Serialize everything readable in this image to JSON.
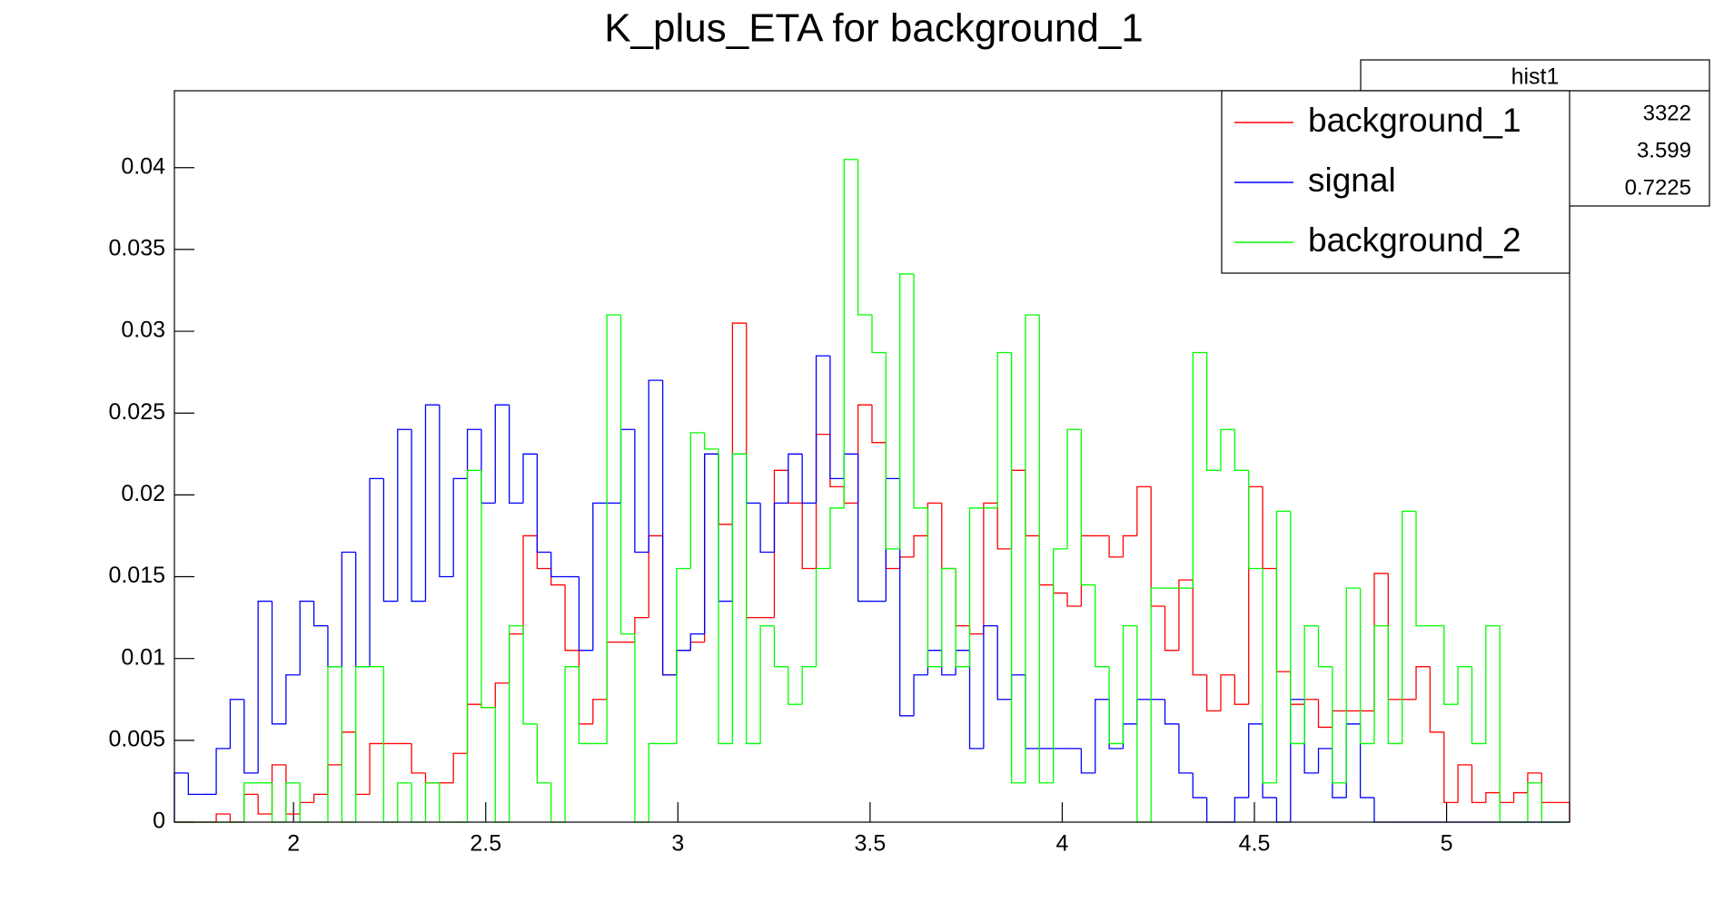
{
  "chart_data": {
    "type": "histogram",
    "title": "K_plus_ETA for background_1",
    "bins": [
      1.69,
      1.7263,
      1.7626,
      1.7989,
      1.8352,
      1.8715,
      1.9078,
      1.9441,
      1.9804,
      2.0167,
      2.053,
      2.0893,
      2.1256,
      2.1619,
      2.1982,
      2.2345,
      2.2708,
      2.3071,
      2.3434,
      2.3797,
      2.416,
      2.4523,
      2.4886,
      2.5249,
      2.5612,
      2.5975,
      2.6338,
      2.6701,
      2.7064,
      2.7427,
      2.779,
      2.8153,
      2.8516,
      2.8879,
      2.9242,
      2.9605,
      2.9968,
      3.0331,
      3.0694,
      3.1057,
      3.142,
      3.1783,
      3.2146,
      3.2509,
      3.2872,
      3.3235,
      3.3598,
      3.3961,
      3.4324,
      3.4687,
      3.505,
      3.5413,
      3.5776,
      3.6139,
      3.6502,
      3.6865,
      3.7228,
      3.7591,
      3.7954,
      3.8317,
      3.868,
      3.9043,
      3.9406,
      3.9769,
      4.0132,
      4.0495,
      4.0858,
      4.1221,
      4.1584,
      4.1947,
      4.231,
      4.2673,
      4.3036,
      4.3399,
      4.3762,
      4.4125,
      4.4488,
      4.4851,
      4.5214,
      4.5577,
      4.594,
      4.6303,
      4.6666,
      4.7029,
      4.7392,
      4.7755,
      4.8118,
      4.8481,
      4.8844,
      4.9207,
      4.957,
      4.9933,
      5.0296,
      5.0659,
      5.1022,
      5.1385,
      5.1748,
      5.2111,
      5.2474,
      5.2837,
      5.32
    ],
    "series": [
      {
        "name": "background_1",
        "color": "#ff0000",
        "values": [
          0,
          0,
          0,
          0.0005,
          0,
          0.0017,
          0.0005,
          0.0035,
          0.0005,
          0.0012,
          0.0017,
          0.0035,
          0.0055,
          0.0017,
          0.0048,
          0.0048,
          0.0048,
          0.003,
          0.0024,
          0.0024,
          0.0042,
          0.0072,
          0.007,
          0.0085,
          0.0115,
          0.0175,
          0.0155,
          0.0145,
          0.0105,
          0.006,
          0.0075,
          0.011,
          0.011,
          0.0125,
          0.0175,
          0.009,
          0.0105,
          0.011,
          0.0225,
          0.0182,
          0.0305,
          0.0125,
          0.0125,
          0.0215,
          0.0195,
          0.0155,
          0.0237,
          0.0205,
          0.0195,
          0.0255,
          0.0232,
          0.0155,
          0.0162,
          0.0175,
          0.0195,
          0.0155,
          0.012,
          0.0115,
          0.0195,
          0.0167,
          0.0215,
          0.0175,
          0.0145,
          0.014,
          0.0132,
          0.0175,
          0.0175,
          0.0162,
          0.0175,
          0.0205,
          0.0132,
          0.0105,
          0.0148,
          0.009,
          0.0068,
          0.009,
          0.0072,
          0.0205,
          0.0155,
          0.0092,
          0.0072,
          0.0075,
          0.0058,
          0.0068,
          0.0068,
          0.0068,
          0.0152,
          0.0075,
          0.0075,
          0.0095,
          0.0055,
          0.0012,
          0.0035,
          0.0012,
          0.0018,
          0.0012,
          0.0018,
          0.003,
          0.0012,
          0.0012
        ]
      },
      {
        "name": "signal",
        "color": "#0000ff",
        "values": [
          0.003,
          0.0017,
          0.0017,
          0.0045,
          0.0075,
          0.003,
          0.0135,
          0.006,
          0.009,
          0.0135,
          0.012,
          0.0095,
          0.0165,
          0.0095,
          0.021,
          0.0135,
          0.024,
          0.0135,
          0.0255,
          0.015,
          0.021,
          0.024,
          0.0195,
          0.0255,
          0.0195,
          0.0225,
          0.0165,
          0.015,
          0.015,
          0.0105,
          0.0195,
          0.0195,
          0.024,
          0.0165,
          0.027,
          0.009,
          0.0105,
          0.0115,
          0.0225,
          0.0135,
          0.0225,
          0.0195,
          0.0165,
          0.0195,
          0.0225,
          0.0195,
          0.0285,
          0.021,
          0.0225,
          0.0135,
          0.0135,
          0.021,
          0.0065,
          0.009,
          0.0105,
          0.009,
          0.0105,
          0.0045,
          0.012,
          0.0075,
          0.009,
          0.0045,
          0.0045,
          0.0045,
          0.0045,
          0.003,
          0.0075,
          0.0045,
          0.006,
          0.0075,
          0.0075,
          0.006,
          0.003,
          0.0015,
          0,
          0,
          0.0015,
          0.006,
          0.0015,
          0,
          0.0075,
          0.003,
          0.0045,
          0.0015,
          0.006,
          0.0015,
          0,
          0,
          0,
          0,
          0,
          0,
          0,
          0,
          0,
          0,
          0,
          0,
          0,
          0
        ]
      },
      {
        "name": "background_2",
        "color": "#00ff00",
        "values": [
          0,
          0,
          0,
          0,
          0,
          0.0024,
          0.0024,
          0,
          0.0024,
          0,
          0,
          0.0095,
          0,
          0.0095,
          0.0095,
          0,
          0.0024,
          0,
          0.0024,
          0,
          0,
          0.0215,
          0.007,
          0,
          0.012,
          0.006,
          0.0024,
          0,
          0.0095,
          0.0048,
          0.0048,
          0.031,
          0.0115,
          0,
          0.0048,
          0.0048,
          0.0155,
          0.0238,
          0.0228,
          0.0048,
          0.0225,
          0.0048,
          0.012,
          0.0095,
          0.0072,
          0.0095,
          0.0155,
          0.0192,
          0.0405,
          0.031,
          0.0287,
          0.0167,
          0.0335,
          0.0192,
          0.0095,
          0.0155,
          0.0095,
          0.0192,
          0.0192,
          0.0287,
          0.0024,
          0.031,
          0.0024,
          0.0167,
          0.024,
          0.0145,
          0.0095,
          0.0048,
          0.012,
          0,
          0.0143,
          0.0143,
          0.0143,
          0.0287,
          0.0215,
          0.024,
          0.0215,
          0.0155,
          0.0024,
          0.019,
          0.0048,
          0.012,
          0.0095,
          0.0024,
          0.0143,
          0.0048,
          0.012,
          0.0048,
          0.019,
          0.012,
          0.012,
          0.0072,
          0.0095,
          0.0048,
          0.012,
          0,
          0,
          0.0024,
          0,
          0
        ]
      }
    ],
    "xlim": [
      1.69,
      5.32
    ],
    "xticks": [
      2,
      2.5,
      3,
      3.5,
      4,
      4.5,
      5
    ],
    "ylim": [
      0,
      0.0447
    ],
    "yticks": [
      0,
      0.005,
      0.01,
      0.015,
      0.02,
      0.025,
      0.03,
      0.035,
      0.04
    ],
    "legend": "top-right",
    "stats": {
      "title": "hist1",
      "values": [
        3322,
        3.599,
        0.7225
      ]
    }
  }
}
